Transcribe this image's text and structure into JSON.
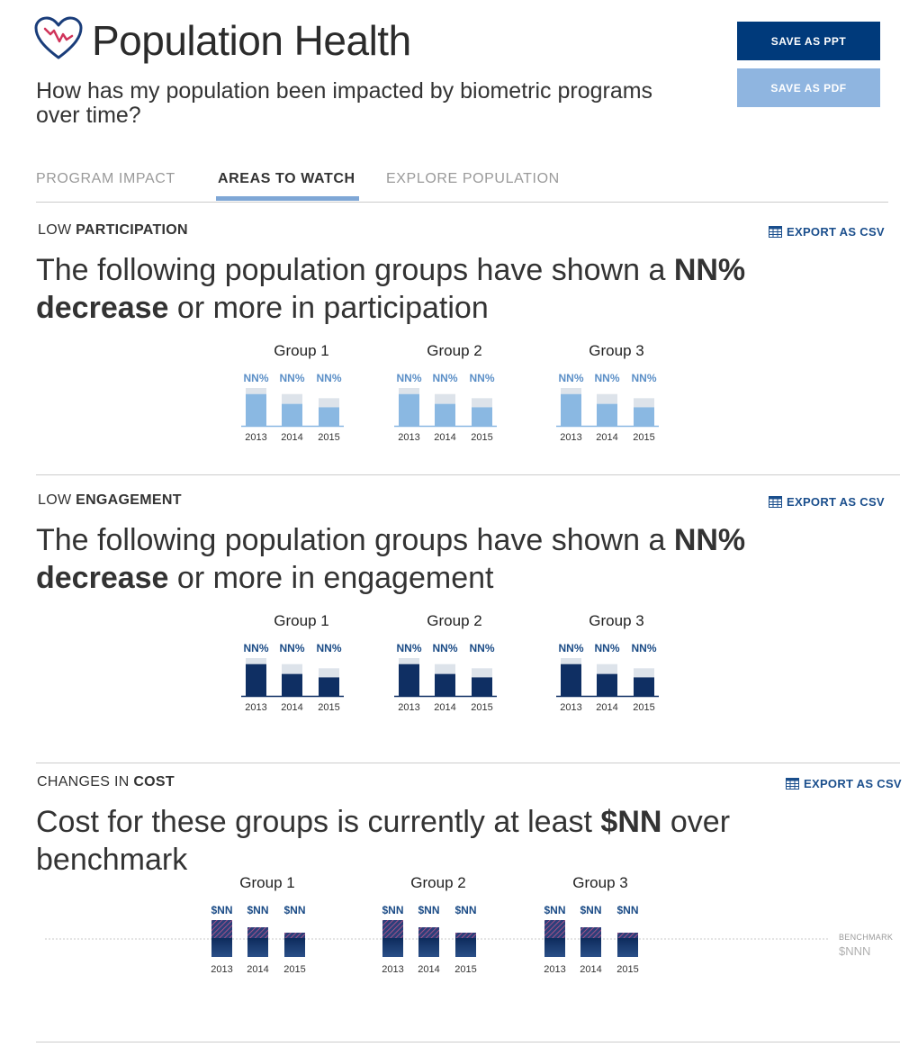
{
  "header": {
    "title": "Population Health",
    "subtitle": "How has my population been impacted by biometric programs over time?"
  },
  "actions": {
    "save_ppt": "SAVE AS PPT",
    "save_pdf": "SAVE AS PDF"
  },
  "tabs": [
    {
      "label": "PROGRAM IMPACT",
      "active": false
    },
    {
      "label": "AREAS TO WATCH",
      "active": true
    },
    {
      "label": "EXPLORE POPULATION",
      "active": false
    }
  ],
  "colors": {
    "navy": "#003a7b",
    "light_blue": "#8fb5e0",
    "participation_bar": "#8ab8e2",
    "engagement_bar": "#0f2f63",
    "bar_background": "#dde3ea",
    "label_blue": "#5b8fc7",
    "label_navy": "#1a4b86"
  },
  "sections": [
    {
      "label_prefix": "LOW",
      "label_strong": "PARTICIPATION",
      "export": "EXPORT AS CSV",
      "headline_pre": "The following population groups have shown a",
      "headline_b1": "NN%",
      "headline_b2": "decrease",
      "headline_post": "or more in participation",
      "bar_style": "participation",
      "groups": [
        {
          "title": "Group 1",
          "labels": [
            "NN%",
            "NN%",
            "NN%"
          ],
          "years": [
            "2013",
            "2014",
            "2015"
          ],
          "totals": [
            1.0,
            0.84,
            0.73
          ],
          "values": [
            0.84,
            0.58,
            0.49
          ]
        },
        {
          "title": "Group 2",
          "labels": [
            "NN%",
            "NN%",
            "NN%"
          ],
          "years": [
            "2013",
            "2014",
            "2015"
          ],
          "totals": [
            1.0,
            0.84,
            0.73
          ],
          "values": [
            0.84,
            0.58,
            0.49
          ]
        },
        {
          "title": "Group 3",
          "labels": [
            "NN%",
            "NN%",
            "NN%"
          ],
          "years": [
            "2013",
            "2014",
            "2015"
          ],
          "totals": [
            1.0,
            0.84,
            0.73
          ],
          "values": [
            0.84,
            0.58,
            0.49
          ]
        }
      ]
    },
    {
      "label_prefix": "LOW",
      "label_strong": "ENGAGEMENT",
      "export": "EXPORT AS CSV",
      "headline_pre": "The following population groups have shown a",
      "headline_b1": "NN%",
      "headline_b2": "decrease",
      "headline_post": "or more in engagement",
      "bar_style": "engagement",
      "groups": [
        {
          "title": "Group 1",
          "labels": [
            "NN%",
            "NN%",
            "NN%"
          ],
          "years": [
            "2013",
            "2014",
            "2015"
          ],
          "totals": [
            1.0,
            0.84,
            0.73
          ],
          "values": [
            0.84,
            0.58,
            0.49
          ]
        },
        {
          "title": "Group 2",
          "labels": [
            "NN%",
            "NN%",
            "NN%"
          ],
          "years": [
            "2013",
            "2014",
            "2015"
          ],
          "totals": [
            1.0,
            0.84,
            0.73
          ],
          "values": [
            0.84,
            0.58,
            0.49
          ]
        },
        {
          "title": "Group 3",
          "labels": [
            "NN%",
            "NN%",
            "NN%"
          ],
          "years": [
            "2013",
            "2014",
            "2015"
          ],
          "totals": [
            1.0,
            0.84,
            0.73
          ],
          "values": [
            0.84,
            0.58,
            0.49
          ]
        }
      ]
    },
    {
      "label_prefix": "CHANGES IN",
      "label_strong": "COST",
      "export": "EXPORT AS CSV",
      "headline_pre": "Cost for these groups is currently at least",
      "headline_b1": "$NN",
      "headline_post": "over benchmark",
      "bar_style": "cost",
      "benchmark_label": "BENCHMARK",
      "benchmark_value": "$NNN",
      "groups": [
        {
          "title": "Group 1",
          "labels": [
            "$NN",
            "$NN",
            "$NN"
          ],
          "years": [
            "2013",
            "2014",
            "2015"
          ],
          "over": [
            1.0,
            0.6,
            0.3
          ]
        },
        {
          "title": "Group 2",
          "labels": [
            "$NN",
            "$NN",
            "$NN"
          ],
          "years": [
            "2013",
            "2014",
            "2015"
          ],
          "over": [
            1.0,
            0.6,
            0.3
          ]
        },
        {
          "title": "Group 3",
          "labels": [
            "$NN",
            "$NN",
            "$NN"
          ],
          "years": [
            "2013",
            "2014",
            "2015"
          ],
          "over": [
            1.0,
            0.6,
            0.3
          ]
        }
      ]
    }
  ]
}
